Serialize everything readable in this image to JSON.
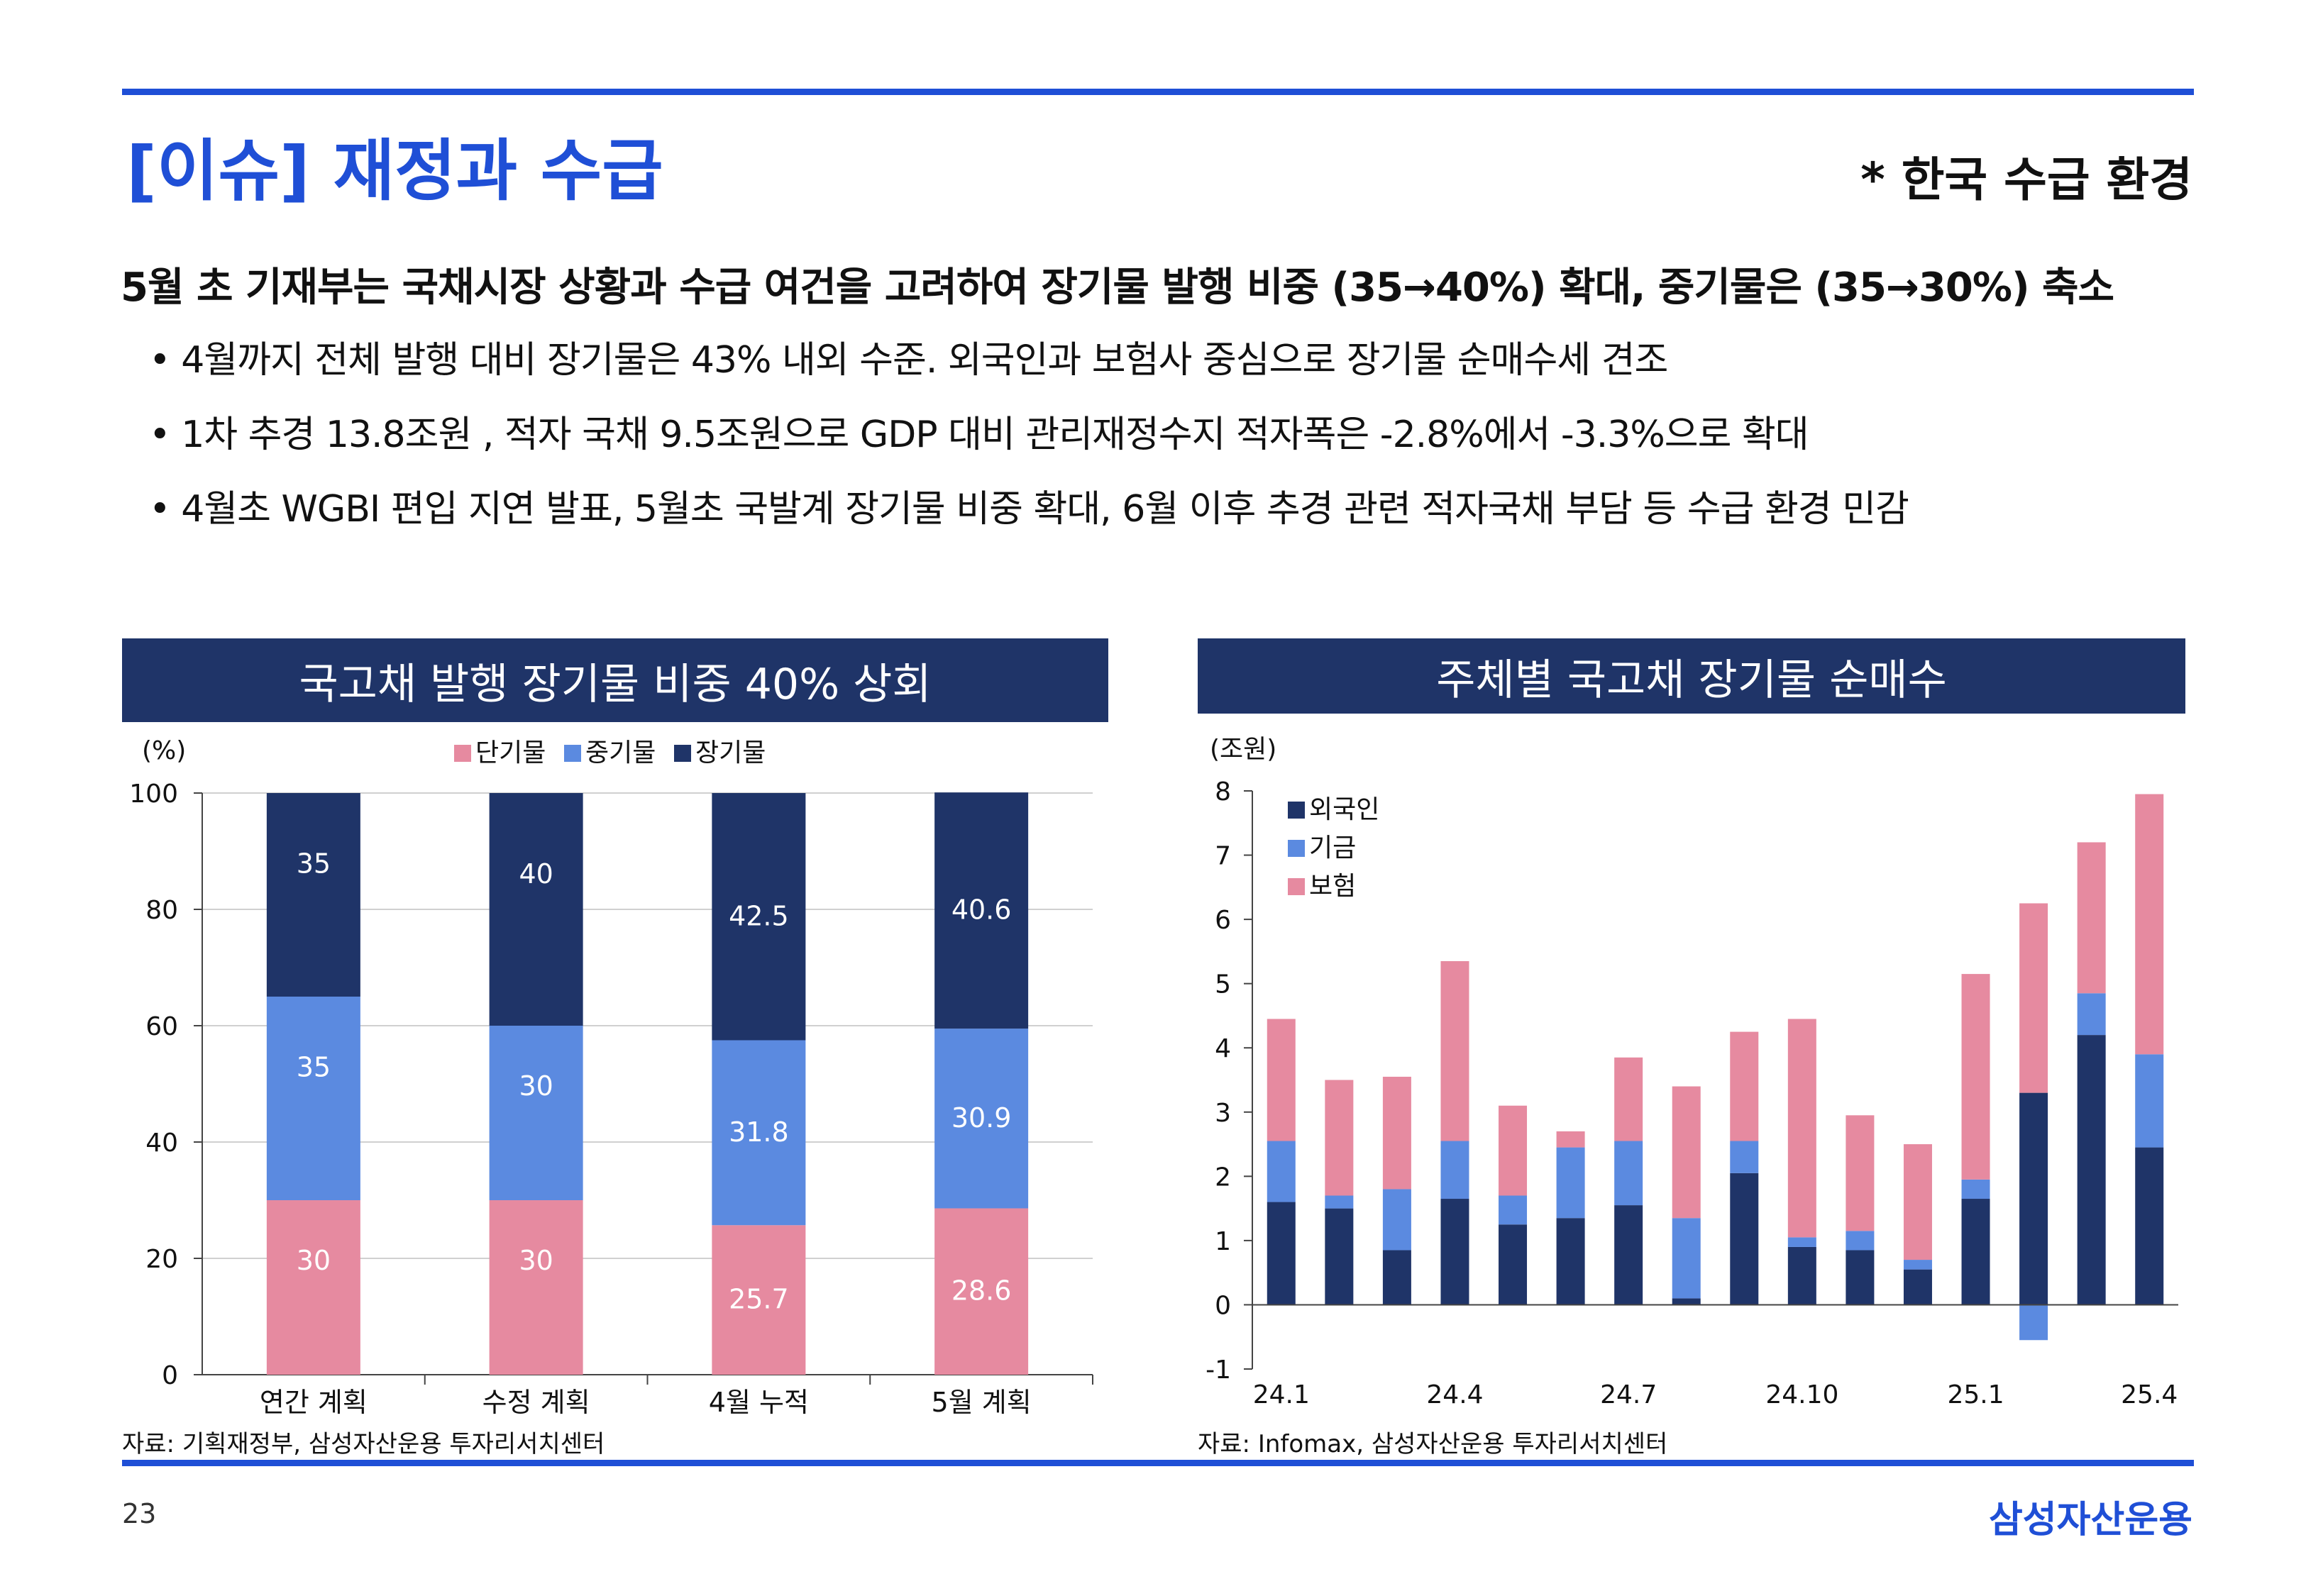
{
  "header": {
    "title": "[이슈] 재정과 수급",
    "tag": "* 한국 수급 환경"
  },
  "headline": "5월 초 기재부는 국채시장 상황과 수급 여건을 고려하여 장기물 발행 비중 (35→40%) 확대, 중기물은 (35→30%) 축소",
  "bullets": [
    "• 4월까지 전체 발행 대비 장기물은 43% 내외 수준. 외국인과 보험사 중심으로 장기물 순매수세 견조",
    "• 1차 추경 13.8조원 , 적자 국채 9.5조원으로 GDP 대비 관리재정수지 적자폭은 -2.8%에서 -3.3%으로 확대",
    "• 4월초 WGBI 편입 지연 발표, 5월초 국발계 장기물 비중 확대, 6월 이후 추경 관련 적자국채 부담 등 수급 환경 민감"
  ],
  "chart_data": [
    {
      "type": "bar",
      "stacked": true,
      "title": "국고채 발행 장기물 비중 40% 상회",
      "ylabel": "(%)",
      "ylim": [
        0,
        100
      ],
      "yticks": [
        0,
        20,
        40,
        60,
        80,
        100
      ],
      "categories": [
        "연간 계획",
        "수정 계획",
        "4월 누적",
        "5월 계획"
      ],
      "series": [
        {
          "name": "단기물",
          "color": "#e68aa0",
          "values": [
            30,
            30,
            25.7,
            28.6
          ],
          "labels": [
            "30",
            "30",
            "25.7",
            "28.6"
          ]
        },
        {
          "name": "중기물",
          "color": "#5b8ae0",
          "values": [
            35,
            30,
            31.8,
            30.9
          ],
          "labels": [
            "35",
            "30",
            "31.8",
            "30.9"
          ]
        },
        {
          "name": "장기물",
          "color": "#1f3468",
          "values": [
            35,
            40,
            42.5,
            40.6
          ],
          "labels": [
            "35",
            "40",
            "42.5",
            "40.6"
          ]
        }
      ],
      "legend_position": "top",
      "grid": true,
      "source": "자료: 기획재정부, 삼성자산운용 투자리서치센터"
    },
    {
      "type": "bar",
      "stacked": true,
      "title": "주체별 국고채 장기물 순매수",
      "ylabel": "(조원)",
      "ylim": [
        -1,
        8
      ],
      "yticks": [
        -1,
        0,
        1,
        2,
        3,
        4,
        5,
        6,
        7,
        8
      ],
      "x": [
        "24.1",
        "24.2",
        "24.3",
        "24.4",
        "24.5",
        "24.6",
        "24.7",
        "24.8",
        "24.9",
        "24.10",
        "24.11",
        "24.12",
        "25.1",
        "25.2",
        "25.3",
        "25.4"
      ],
      "xtick_labels": [
        "24.1",
        "24.4",
        "24.7",
        "24.10",
        "25.1",
        "25.4"
      ],
      "series": [
        {
          "name": "외국인",
          "color": "#1f3468",
          "values": [
            1.6,
            1.5,
            0.85,
            1.65,
            1.25,
            1.35,
            1.55,
            0.1,
            2.05,
            0.9,
            0.85,
            0.55,
            1.65,
            3.3,
            4.2,
            2.45
          ]
        },
        {
          "name": "기금",
          "color": "#5b8ae0",
          "values": [
            0.95,
            0.2,
            0.95,
            0.9,
            0.45,
            1.1,
            1.0,
            1.25,
            0.5,
            0.15,
            0.3,
            0.15,
            0.3,
            -0.55,
            0.65,
            1.45
          ]
        },
        {
          "name": "보험",
          "color": "#e68aa0",
          "values": [
            1.9,
            1.8,
            1.75,
            2.8,
            1.4,
            0.25,
            1.3,
            2.05,
            1.7,
            3.4,
            1.8,
            1.8,
            3.2,
            2.95,
            2.35,
            4.05
          ]
        }
      ],
      "legend_position": "top-left",
      "grid": false,
      "source": "자료: Infomax, 삼성자산운용 투자리서치센터"
    }
  ],
  "footer": {
    "page_number": "23",
    "brand": "삼성자산운용"
  }
}
